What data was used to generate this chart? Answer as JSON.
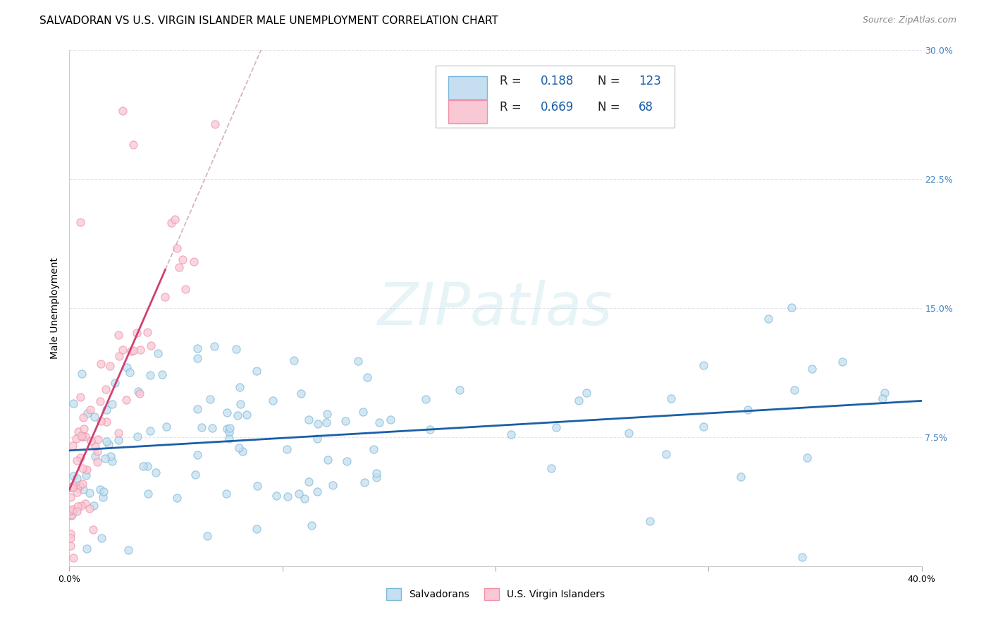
{
  "title": "SALVADORAN VS U.S. VIRGIN ISLANDER MALE UNEMPLOYMENT CORRELATION CHART",
  "source": "Source: ZipAtlas.com",
  "ylabel": "Male Unemployment",
  "xlim": [
    0.0,
    0.4
  ],
  "ylim": [
    0.0,
    0.3
  ],
  "blue_color": "#7ab8d9",
  "blue_fill": "#c5dff0",
  "pink_color": "#f090a8",
  "pink_fill": "#f8c8d4",
  "trend_blue": "#1a5fa8",
  "trend_pink": "#d04070",
  "diag_color": "#d0a0b0",
  "legend_text_color": "#1a5fa8",
  "legend_label_color": "#222222",
  "watermark_color": "#add8e6",
  "grid_color": "#e5e5ee",
  "right_tick_color": "#4080c0",
  "title_fontsize": 11,
  "source_fontsize": 9,
  "ylabel_fontsize": 10,
  "tick_fontsize": 9,
  "legend_fontsize": 12,
  "watermark_fontsize": 60,
  "scatter_size": 65,
  "scatter_alpha": 0.75
}
